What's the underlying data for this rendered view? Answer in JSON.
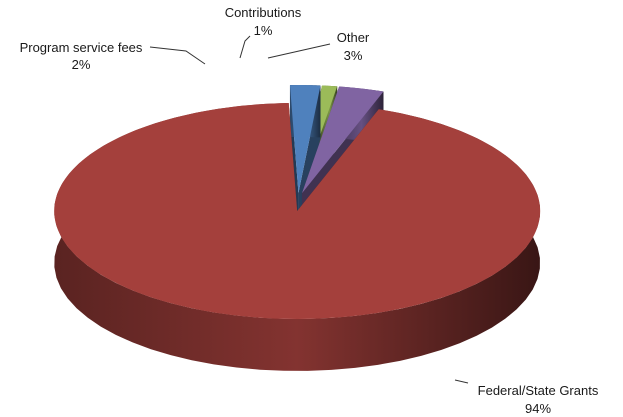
{
  "chart_data": {
    "type": "pie",
    "style": "3d-exploded",
    "slices": [
      {
        "label": "Program service fees",
        "percent_label": "2%",
        "value": 2,
        "color": "#4f81bd"
      },
      {
        "label": "Contributions",
        "percent_label": "1%",
        "value": 1,
        "color": "#9bbb59"
      },
      {
        "label": "Other",
        "percent_label": "3%",
        "value": 3,
        "color": "#8064a2"
      },
      {
        "label": "Federal/State Grants",
        "percent_label": "94%",
        "value": 94,
        "color": "#a4403c"
      }
    ]
  }
}
